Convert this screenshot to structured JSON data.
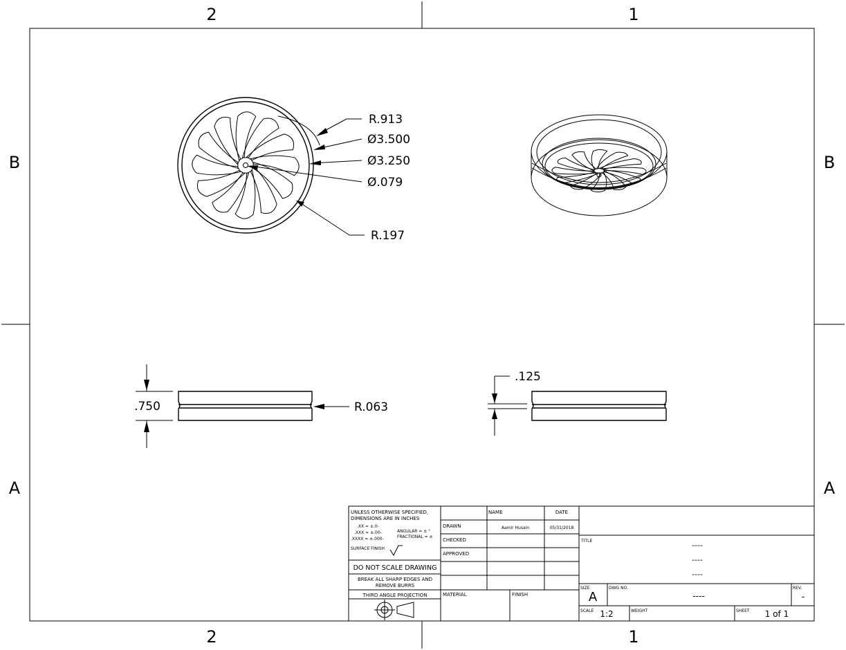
{
  "zones": {
    "top_left": "2",
    "top_right": "1",
    "bottom_left": "2",
    "bottom_right": "1",
    "left_upper": "B",
    "left_lower": "A",
    "right_upper": "B",
    "right_lower": "A"
  },
  "dimensions": {
    "r_outer": "R.913",
    "dia_outer": "Ø3.500",
    "dia_inner": "Ø3.250",
    "dia_hole": "Ø.079",
    "r_slot": "R.197",
    "height": ".750",
    "r_groove": "R.063",
    "groove_width": ".125"
  },
  "title_block": {
    "tolerance_note_1": "UNLESS OTHERWISE SPECIFIED,",
    "tolerance_note_2": "DIMENSIONS ARE IN INCHES",
    "tol_xx": ".XX = ±.0-",
    "tol_xxx": ".XXX = ±.00-",
    "tol_xxxx": ".XXXX = ±.000-",
    "tol_angular": "ANGULAR = ± °",
    "tol_fractional": "FRACTIONAL = ±",
    "surface_finish": "SURFACE FINISH",
    "do_not_scale": "DO NOT SCALE DRAWING",
    "break_edges_1": "BREAK ALL SHARP EDGES AND",
    "break_edges_2": "REMOVE BURRS",
    "projection": "THIRD ANGLE PROJECTION",
    "col_name": "NAME",
    "col_date": "DATE",
    "row_drawn": "DRAWN",
    "row_checked": "CHECKED",
    "row_approved": "APPROVED",
    "drawn_name": "Aamir Husain",
    "drawn_date": "05/31/2018",
    "material_label": "MATERIAL",
    "finish_label": "FINISH",
    "title_label": "TITLE",
    "title_line_1": "----",
    "title_line_2": "----",
    "title_line_3": "----",
    "size_label": "SIZE",
    "size_value": "A",
    "dwg_no_label": "DWG NO.",
    "dwg_no_value": "----",
    "rev_label": "REV.",
    "rev_value": "-",
    "scale_label": "SCALE",
    "scale_value": "1:2",
    "weight_label": "WEIGHT",
    "sheet_label": "SHEET",
    "sheet_value": "1 of 1"
  }
}
